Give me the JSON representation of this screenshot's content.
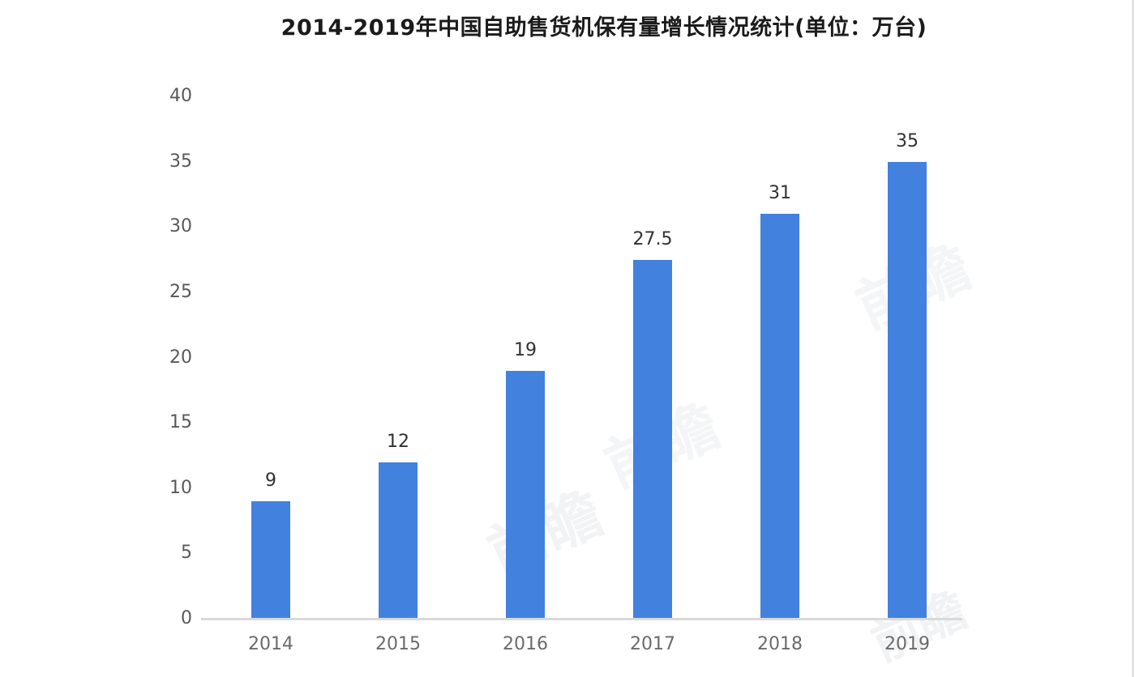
{
  "chart_data": {
    "type": "bar",
    "title": "2014-2019年中国自助售货机保有量增长情况统计(单位：万台)",
    "categories": [
      "2014",
      "2015",
      "2016",
      "2017",
      "2018",
      "2019"
    ],
    "values": [
      9,
      12,
      19,
      27.5,
      31,
      35
    ],
    "value_labels": [
      "9",
      "12",
      "19",
      "27.5",
      "31",
      "35"
    ],
    "xlabel": "",
    "ylabel": "",
    "ylim": [
      0,
      40
    ],
    "yticks": [
      0,
      5,
      10,
      15,
      20,
      25,
      30,
      35,
      40
    ],
    "grid": false,
    "legend": null,
    "bar_color": "#4281DE",
    "axis_line_color": "#d9d9d9",
    "tick_label_color": "#595959",
    "x_label_color": "#6b6b6b"
  },
  "watermark": {
    "text": "前瞻"
  }
}
